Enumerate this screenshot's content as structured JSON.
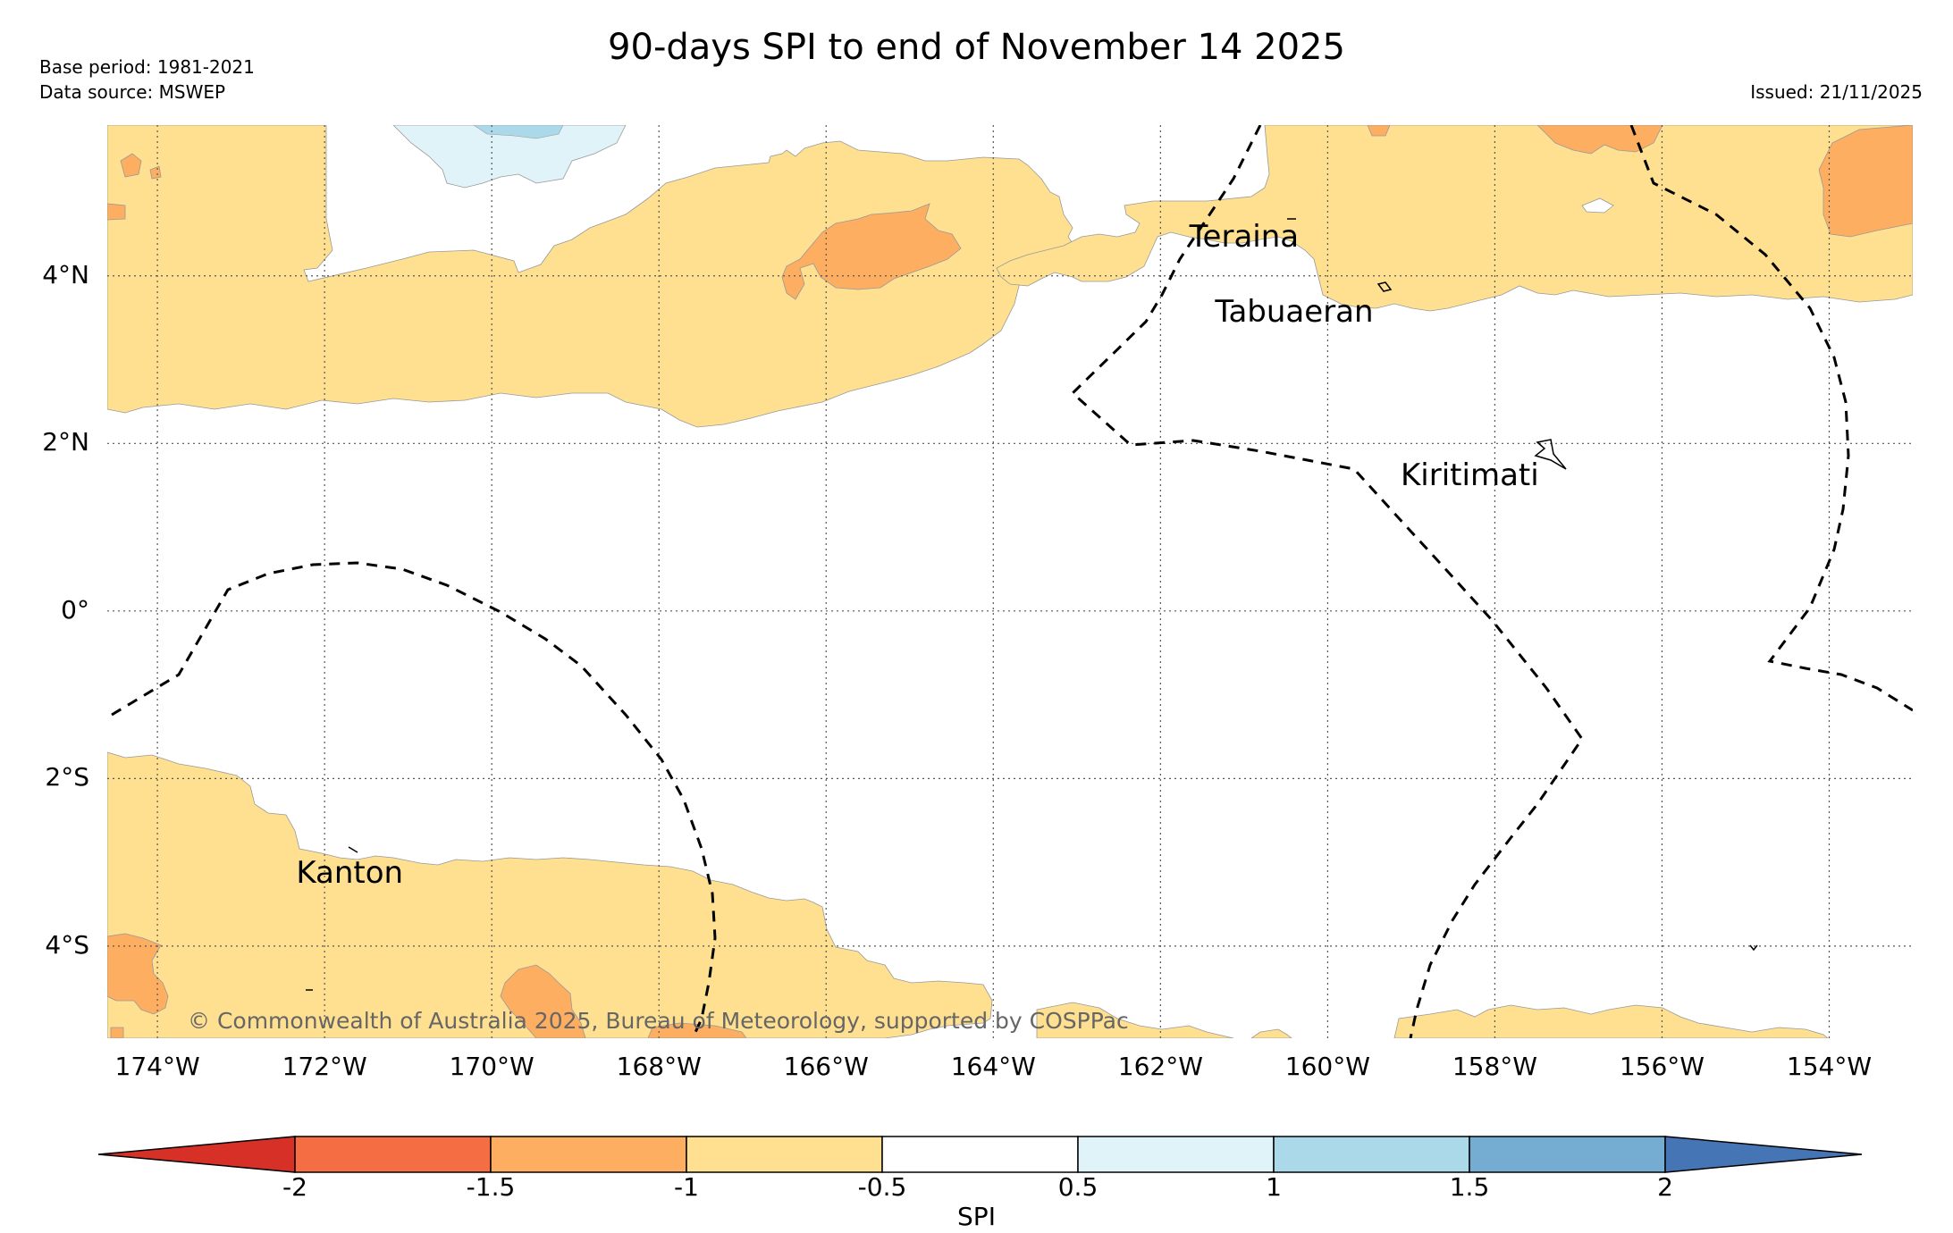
{
  "title": "90-days SPI to end of November 14 2025",
  "base_period": "Base period: 1981-2021",
  "data_source": "Data source: MSWEP",
  "issued": "Issued: 21/11/2025",
  "copyright": "© Commonwealth of Australia 2025, Bureau of Meteorology, supported by COSPPac",
  "map": {
    "lon_range": [
      -174.6,
      -153.0
    ],
    "lat_range": [
      -5.1,
      5.8
    ],
    "lat_labels": [
      {
        "value": 4,
        "text": "4°N"
      },
      {
        "value": 2,
        "text": "2°N"
      },
      {
        "value": 0,
        "text": "0°"
      },
      {
        "value": -2,
        "text": "2°S"
      },
      {
        "value": -4,
        "text": "4°S"
      }
    ],
    "lon_labels": [
      {
        "value": -174,
        "text": "174°W"
      },
      {
        "value": -172,
        "text": "172°W"
      },
      {
        "value": -170,
        "text": "170°W"
      },
      {
        "value": -168,
        "text": "168°W"
      },
      {
        "value": -166,
        "text": "166°W"
      },
      {
        "value": -164,
        "text": "164°W"
      },
      {
        "value": -162,
        "text": "162°W"
      },
      {
        "value": -160,
        "text": "160°W"
      },
      {
        "value": -158,
        "text": "158°W"
      },
      {
        "value": -156,
        "text": "156°W"
      },
      {
        "value": -154,
        "text": "154°W"
      }
    ],
    "places": [
      {
        "name": "Teraina",
        "lon": -161.0,
        "lat": 4.45
      },
      {
        "name": "Tabuaeran",
        "lon": -160.4,
        "lat": 3.55
      },
      {
        "name": "Kiritimati",
        "lon": -158.3,
        "lat": 1.6
      },
      {
        "name": "Kanton",
        "lon": -171.7,
        "lat": -3.15
      }
    ]
  },
  "colorbar": {
    "label": "SPI",
    "ticks": [
      "-2",
      "-1.5",
      "-1",
      "-0.5",
      "0.5",
      "1",
      "1.5",
      "2"
    ],
    "colors": {
      "below_minus2": "#d73027",
      "minus2_to_minus1_5": "#f46d43",
      "minus1_5_to_minus1": "#fdae61",
      "minus1_to_minus0_5": "#fee090",
      "neutral": "#ffffff",
      "p0_5_to_1": "#e0f3f8",
      "p1_to_1_5": "#abd9e9",
      "p1_5_to_2": "#74add1",
      "above_2": "#4575b4"
    }
  }
}
